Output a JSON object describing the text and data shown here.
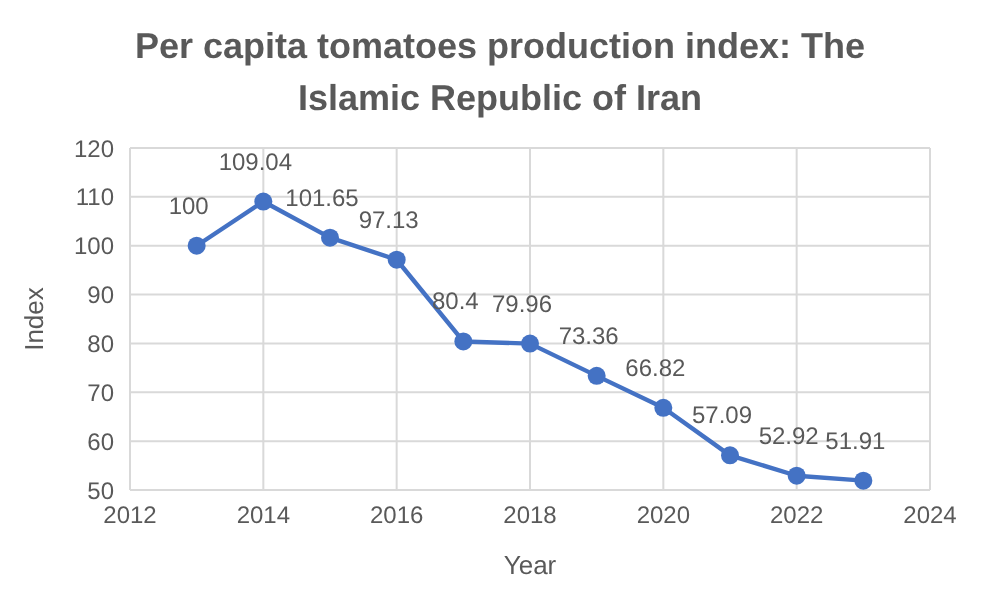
{
  "chart_data": {
    "type": "line",
    "title": "Per capita tomatoes production index: The Islamic Republic of Iran",
    "xlabel": "Year",
    "ylabel": "Index",
    "x": [
      2013,
      2014,
      2015,
      2016,
      2017,
      2018,
      2019,
      2020,
      2021,
      2022,
      2023
    ],
    "series": [
      {
        "color": "#4472c4",
        "values": [
          100,
          109.04,
          101.65,
          97.13,
          80.4,
          79.96,
          73.36,
          66.82,
          57.09,
          52.92,
          51.91
        ]
      }
    ],
    "xlim": [
      2012,
      2024
    ],
    "xticks": [
      2012,
      2014,
      2016,
      2018,
      2020,
      2022,
      2024
    ],
    "ylim": [
      50,
      120
    ],
    "yticks": [
      50,
      60,
      70,
      80,
      90,
      100,
      110,
      120
    ],
    "grid": true,
    "marker": "circle",
    "line_style": "solid",
    "data_labels": true
  }
}
